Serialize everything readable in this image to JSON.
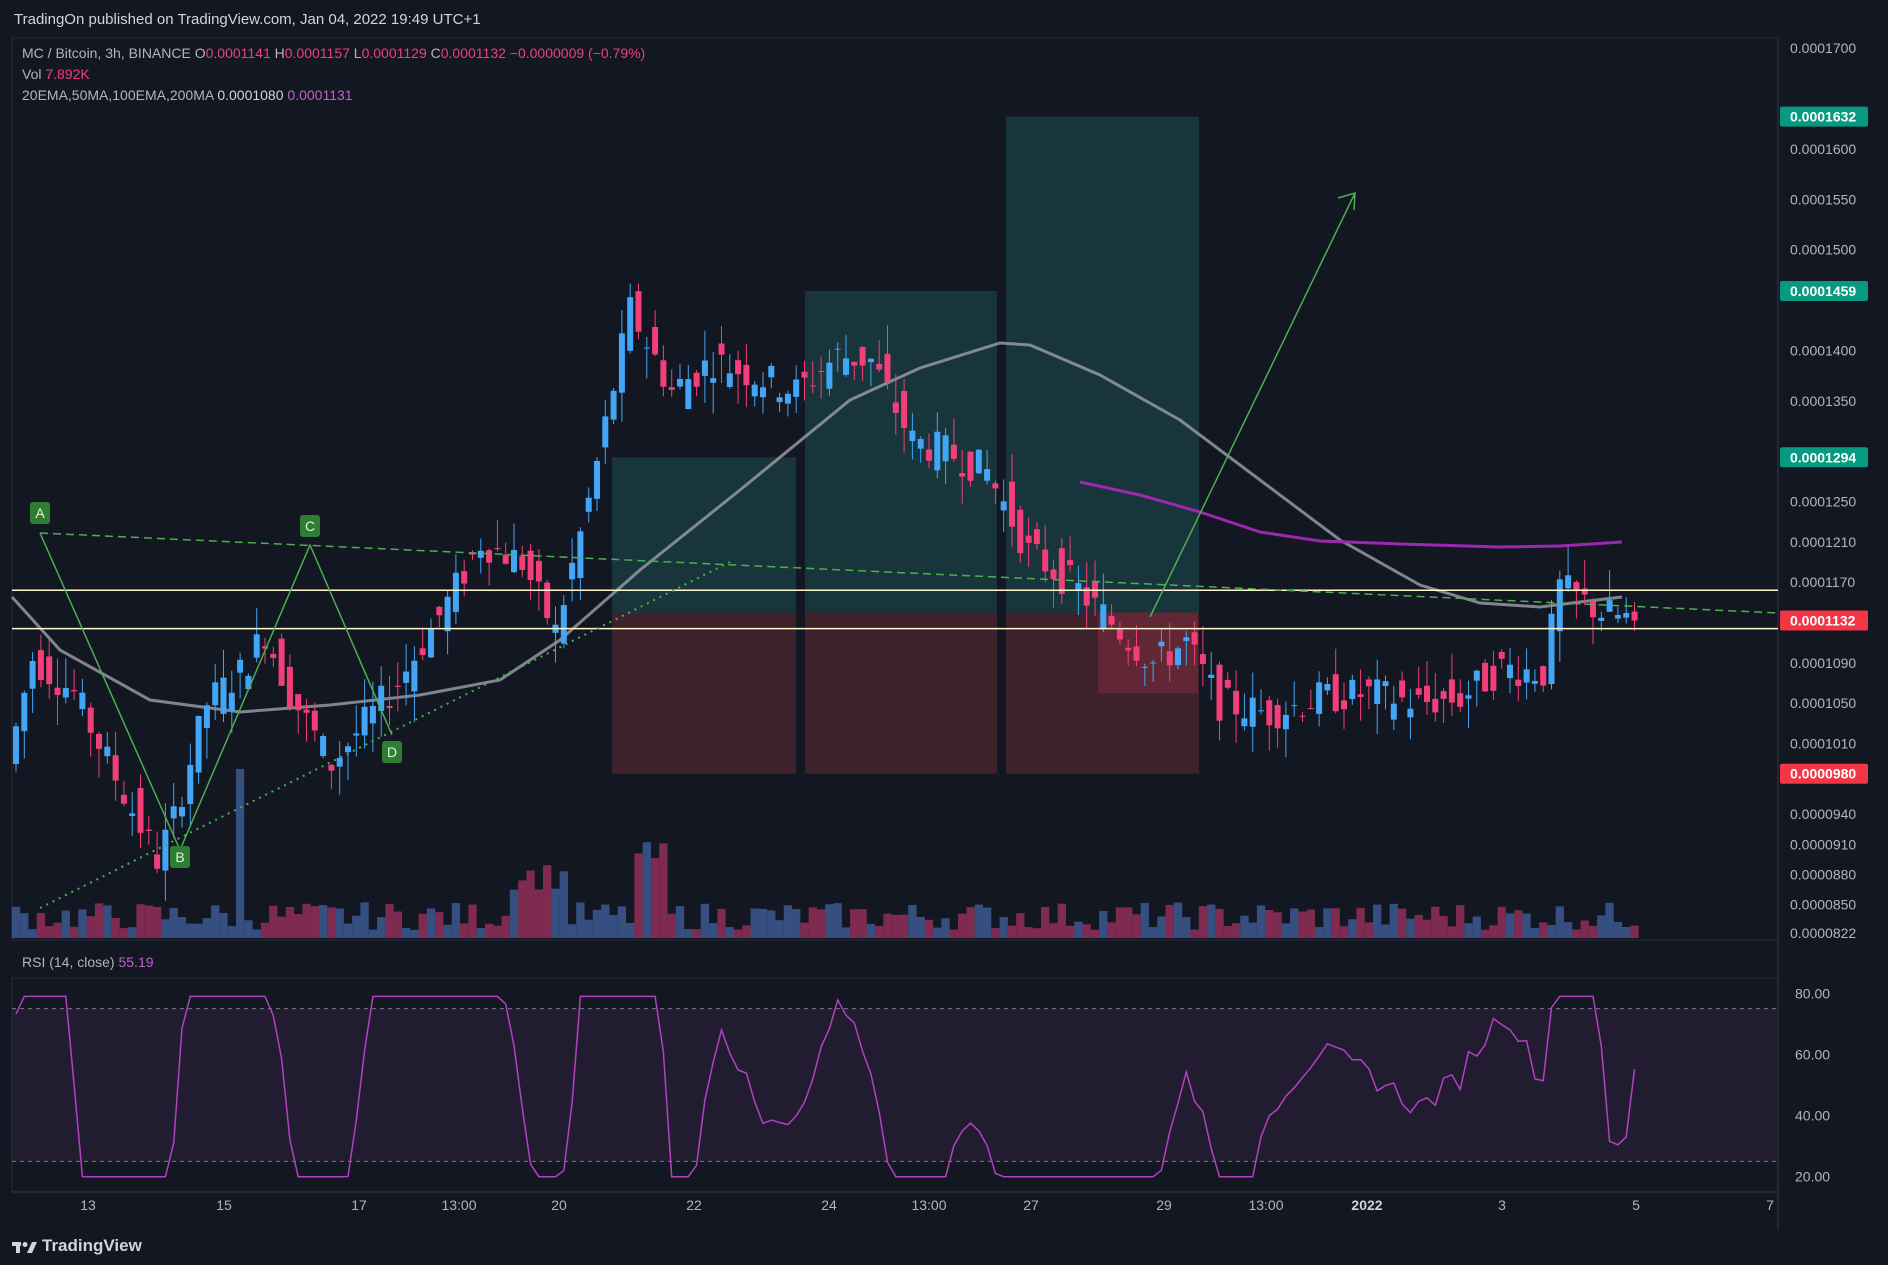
{
  "header": {
    "published": "TradingOn published on TradingView.com, Jan 04, 2022 19:49 UTC+1"
  },
  "legend": {
    "symbol_line": "MC / Bitcoin, 3h, BINANCE",
    "o_label": "O",
    "o_value": "0.0001141",
    "h_label": "H",
    "h_value": "0.0001157",
    "l_label": "L",
    "l_value": "0.0001129",
    "c_label": "C",
    "c_value": "0.0001132",
    "change": "−0.0000009 (−0.79%)",
    "vol_label": "Vol",
    "vol_value": "7.892K",
    "ma_label": "20EMA,50MA,100EMA,200MA",
    "ma_value_1": "0.0001080",
    "ma_value_2": "0.0001131"
  },
  "rsi": {
    "label": "RSI (14, close)",
    "value": "55.19",
    "ticks": [
      "80.00",
      "60.00",
      "40.00",
      "20.00"
    ]
  },
  "price_axis": {
    "ticks": [
      "0.0001700",
      "0.0001600",
      "0.0001550",
      "0.0001500",
      "0.0001400",
      "0.0001350",
      "0.0001250",
      "0.0001210",
      "0.0001170",
      "0.0001090",
      "0.0001050",
      "0.0001010",
      "0.0000940",
      "0.0000910",
      "0.0000880",
      "0.0000850",
      "0.0000822"
    ],
    "tags": [
      {
        "text": "0.0001632",
        "price": 0.0001632,
        "color": "#089981"
      },
      {
        "text": "0.0001459",
        "price": 0.0001459,
        "color": "#089981"
      },
      {
        "text": "0.0001294",
        "price": 0.0001294,
        "color": "#089981"
      },
      {
        "text": "0.0001132",
        "price": 0.0001132,
        "color": "#f23645"
      },
      {
        "text": "0.0000980",
        "price": 9.8e-05,
        "color": "#f23645"
      }
    ]
  },
  "time_axis": {
    "ticks": [
      "13",
      "15",
      "17",
      "13:00",
      "20",
      "22",
      "24",
      "13:00",
      "27",
      "29",
      "13:00",
      "2022",
      "3",
      "5",
      "7"
    ]
  },
  "pattern_points": [
    "A",
    "B",
    "C",
    "D"
  ],
  "footer": {
    "brand": "TradingView"
  },
  "colors": {
    "background": "#131722",
    "up": "#42a5f5",
    "down": "#f23f7a",
    "ma_gray": "#9598a1",
    "ma_purple": "#9c27b0",
    "pattern": "#4caf50",
    "target_zone": "#1e4f52",
    "stop_zone": "#5a2a33",
    "hline": "#fff8d0"
  },
  "chart_data": {
    "type": "candlestick",
    "symbol": "MC / Bitcoin",
    "interval": "3h",
    "exchange": "BINANCE",
    "ylim": [
      8.15e-05,
      0.000171
    ],
    "last_close": 0.0001132,
    "close_path": [
      [
        0,
        9.9e-05
      ],
      [
        3,
        0.0001095
      ],
      [
        8,
        0.000106
      ],
      [
        14,
        9.6e-05
      ],
      [
        18,
        8.95e-05
      ],
      [
        20,
        9.35e-05
      ],
      [
        24,
        0.000105
      ],
      [
        28,
        0.000108
      ],
      [
        31,
        0.000112
      ],
      [
        34,
        0.000106
      ],
      [
        39,
        9.9e-05
      ],
      [
        44,
        0.000104
      ],
      [
        47,
        0.000107
      ],
      [
        53,
        0.000115
      ],
      [
        57,
        0.000121
      ],
      [
        62,
        0.000119
      ],
      [
        66,
        0.000112
      ],
      [
        70,
        0.000125
      ],
      [
        75,
        0.000144
      ],
      [
        80,
        0.000136
      ],
      [
        85,
        0.000139
      ],
      [
        90,
        0.0001375
      ],
      [
        95,
        0.000136
      ],
      [
        100,
        0.0001395
      ],
      [
        104,
        0.000139
      ],
      [
        109,
        0.000131
      ],
      [
        113,
        0.00013
      ],
      [
        118,
        0.000128
      ],
      [
        123,
        0.00012
      ],
      [
        128,
        0.000117
      ],
      [
        133,
        0.000113
      ],
      [
        138,
        0.000109
      ],
      [
        142,
        0.000111
      ],
      [
        146,
        0.000105
      ],
      [
        152,
        0.000104
      ],
      [
        158,
        0.0001055
      ],
      [
        164,
        0.000106
      ],
      [
        170,
        0.000105
      ],
      [
        175,
        0.0001055
      ],
      [
        180,
        0.0001085
      ],
      [
        185,
        0.000108
      ],
      [
        187,
        0.0001165
      ],
      [
        192,
        0.000114
      ],
      [
        196,
        0.0001132
      ]
    ],
    "horizontal_levels": [
      0.0001162,
      0.0001124
    ],
    "positions": [
      {
        "entry": 0.000114,
        "target": 0.0001294,
        "stop": 9.8e-05
      },
      {
        "entry": 0.000114,
        "target": 0.0001459,
        "stop": 9.8e-05
      },
      {
        "entry": 0.000114,
        "target": 0.0001632,
        "stop": 9.8e-05
      }
    ],
    "indicators": [
      "20EMA",
      "50MA",
      "100EMA",
      "200MA"
    ],
    "rsi": {
      "period": 14,
      "source": "close",
      "last": 55.19,
      "ylim": [
        15,
        85
      ],
      "bands": [
        75,
        25
      ]
    }
  }
}
